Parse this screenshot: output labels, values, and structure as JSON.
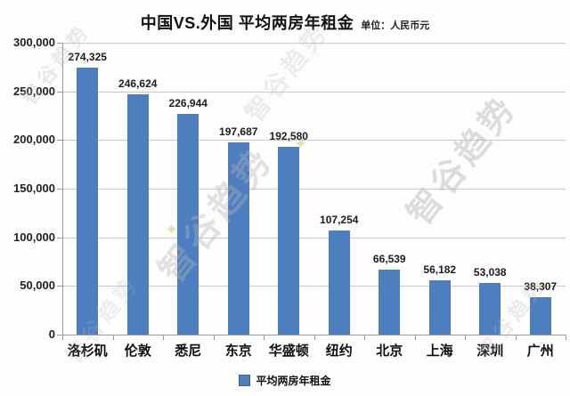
{
  "title": "中国VS.外国 平均两房年租金",
  "unit_label": "单位：人民币元",
  "watermark": "智谷趋势",
  "colors": {
    "bar": "#4d7ebf",
    "grid": "#c9c9c9",
    "axis": "#9b9b9b"
  },
  "chart_data": {
    "type": "bar",
    "title": "中国VS.外国 平均两房年租金",
    "subtitle": "单位：人民币元",
    "categories": [
      "洛杉矶",
      "伦敦",
      "悉尼",
      "东京",
      "华盛顿",
      "纽约",
      "北京",
      "上海",
      "深圳",
      "广州"
    ],
    "values": [
      274325,
      246624,
      226944,
      197687,
      192580,
      107254,
      66539,
      56182,
      53038,
      38307
    ],
    "value_labels": [
      "274,325",
      "246,624",
      "226,944",
      "197,687",
      "192,580",
      "107,254",
      "66,539",
      "56,182",
      "53,038",
      "38,307"
    ],
    "xlabel": "",
    "ylabel": "",
    "ylim": [
      0,
      300000
    ],
    "ytick_interval": 50000,
    "ytick_labels": [
      "0",
      "50,000",
      "100,000",
      "150,000",
      "200,000",
      "250,000",
      "300,000"
    ],
    "grid": true,
    "legend": [
      "平均两房年租金"
    ],
    "legend_position": "bottom"
  }
}
